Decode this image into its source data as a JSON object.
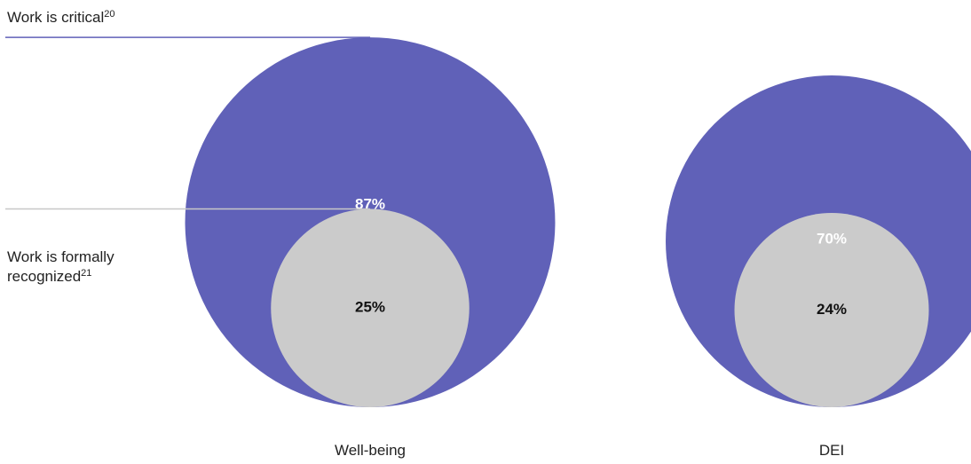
{
  "chart_data": {
    "type": "bubble",
    "categories": [
      "Well-being",
      "DEI"
    ],
    "series": [
      {
        "name": "Work is critical",
        "footnote": "20",
        "values": [
          87,
          70
        ],
        "labels": [
          "87%",
          "70%"
        ],
        "color": "#6061b8"
      },
      {
        "name": "Work is formally recognized",
        "footnote": "21",
        "values": [
          25,
          24
        ],
        "labels": [
          "25%",
          "24%"
        ],
        "color": "#cbcbcb"
      }
    ],
    "legend": {
      "critical_label": "Work is critical",
      "critical_sup": "20",
      "recognized_label_line1": "Work is formally",
      "recognized_label_line2": "recognized",
      "recognized_sup": "21",
      "placement": "left"
    },
    "colors": {
      "outer": "#6061b8",
      "inner": "#cbcbcb",
      "outer_text": "#ffffff",
      "inner_text": "#111111",
      "leader_critical": "#6061b8",
      "leader_recognized": "#c8c8c8"
    },
    "grid": false
  }
}
